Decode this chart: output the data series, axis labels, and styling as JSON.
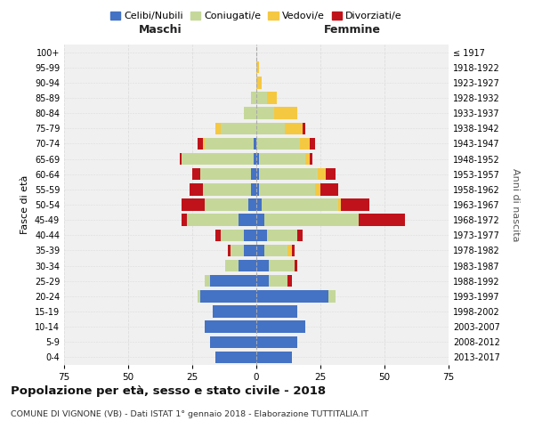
{
  "age_groups": [
    "0-4",
    "5-9",
    "10-14",
    "15-19",
    "20-24",
    "25-29",
    "30-34",
    "35-39",
    "40-44",
    "45-49",
    "50-54",
    "55-59",
    "60-64",
    "65-69",
    "70-74",
    "75-79",
    "80-84",
    "85-89",
    "90-94",
    "95-99",
    "100+"
  ],
  "birth_years": [
    "2013-2017",
    "2008-2012",
    "2003-2007",
    "1998-2002",
    "1993-1997",
    "1988-1992",
    "1983-1987",
    "1978-1982",
    "1973-1977",
    "1968-1972",
    "1963-1967",
    "1958-1962",
    "1953-1957",
    "1948-1952",
    "1943-1947",
    "1938-1942",
    "1933-1937",
    "1928-1932",
    "1923-1927",
    "1918-1922",
    "≤ 1917"
  ],
  "male": {
    "celibi": [
      16,
      18,
      20,
      17,
      22,
      18,
      7,
      5,
      5,
      7,
      3,
      2,
      2,
      1,
      1,
      0,
      0,
      0,
      0,
      0,
      0
    ],
    "coniugati": [
      0,
      0,
      0,
      0,
      1,
      2,
      5,
      5,
      9,
      20,
      17,
      19,
      20,
      28,
      19,
      14,
      5,
      2,
      0,
      0,
      0
    ],
    "vedovi": [
      0,
      0,
      0,
      0,
      0,
      0,
      0,
      0,
      0,
      0,
      0,
      0,
      0,
      0,
      1,
      2,
      0,
      0,
      0,
      0,
      0
    ],
    "divorziati": [
      0,
      0,
      0,
      0,
      0,
      0,
      0,
      1,
      2,
      2,
      9,
      5,
      3,
      1,
      2,
      0,
      0,
      0,
      0,
      0,
      0
    ]
  },
  "female": {
    "nubili": [
      14,
      16,
      19,
      16,
      28,
      5,
      5,
      3,
      4,
      3,
      2,
      1,
      1,
      1,
      0,
      0,
      0,
      0,
      0,
      0,
      0
    ],
    "coniugate": [
      0,
      0,
      0,
      0,
      3,
      7,
      10,
      9,
      12,
      37,
      30,
      22,
      23,
      18,
      17,
      11,
      7,
      4,
      0,
      0,
      0
    ],
    "vedove": [
      0,
      0,
      0,
      0,
      0,
      0,
      0,
      2,
      0,
      0,
      1,
      2,
      3,
      2,
      4,
      7,
      9,
      4,
      2,
      1,
      0
    ],
    "divorziate": [
      0,
      0,
      0,
      0,
      0,
      2,
      1,
      1,
      2,
      18,
      11,
      7,
      4,
      1,
      2,
      1,
      0,
      0,
      0,
      0,
      0
    ]
  },
  "colors": {
    "celibi": "#4472C4",
    "coniugati": "#C5D89A",
    "vedovi": "#F5C842",
    "divorziati": "#C0121A"
  },
  "xlim": 75,
  "title": "Popolazione per età, sesso e stato civile - 2018",
  "subtitle": "COMUNE DI VIGNONE (VB) - Dati ISTAT 1° gennaio 2018 - Elaborazione TUTTITALIA.IT",
  "ylabel_left": "Fasce di età",
  "ylabel_right": "Anni di nascita",
  "xlabel_left": "Maschi",
  "xlabel_right": "Femmine",
  "legend_labels": [
    "Celibi/Nubili",
    "Coniugati/e",
    "Vedovi/e",
    "Divorziati/e"
  ],
  "background_color": "#FFFFFF",
  "plot_bg_color": "#F0F0F0",
  "grid_color": "#DDDDDD"
}
